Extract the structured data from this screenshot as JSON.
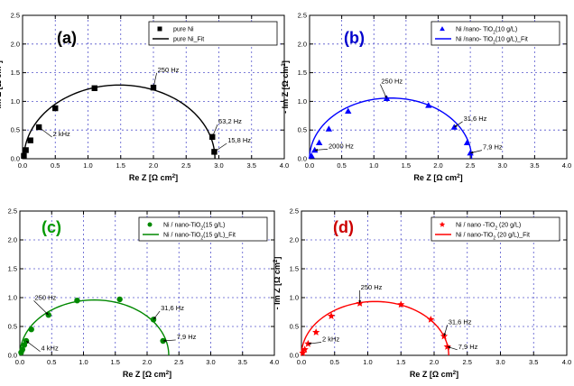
{
  "chart_data": [
    {
      "type": "scatter",
      "panel_label": "(a)",
      "panel_label_color": "#000000",
      "color": "#000000",
      "marker": "square",
      "xlabel": "Re Z [Ω cm²]",
      "ylabel": "- Im Z [Ω cm²]",
      "xlim": [
        0,
        4.0
      ],
      "ylim": [
        0,
        2.5
      ],
      "xticks": [
        "0.0",
        "0.5",
        "1.0",
        "1.5",
        "2.0",
        "2.5",
        "3.0",
        "3.5",
        "4.0"
      ],
      "yticks": [
        "0.0",
        "0.5",
        "1.0",
        "1.5",
        "2.0",
        "2.5"
      ],
      "grid": true,
      "legend": {
        "position": "top-right",
        "entries": [
          "pure Ni",
          "pure Ni_Fit"
        ]
      },
      "series": [
        {
          "name": "pure Ni",
          "kind": "points",
          "x": [
            0.02,
            0.05,
            0.12,
            0.25,
            0.5,
            1.1,
            2.0,
            2.9,
            2.93
          ],
          "y": [
            0.05,
            0.15,
            0.32,
            0.55,
            0.88,
            1.23,
            1.24,
            0.38,
            0.12
          ]
        },
        {
          "name": "pure Ni_Fit",
          "kind": "fit",
          "center": 1.48,
          "radius": 1.46,
          "depression": 0.88
        }
      ],
      "annotations": [
        {
          "text": "250 Hz",
          "x": 2.0,
          "y": 1.24,
          "tx": 2.05,
          "ty": 1.45
        },
        {
          "text": "63,2 Hz",
          "x": 2.9,
          "y": 0.38,
          "tx": 2.98,
          "ty": 0.55
        },
        {
          "text": "15,8 Hz",
          "x": 2.93,
          "y": 0.12,
          "tx": 3.12,
          "ty": 0.22
        },
        {
          "text": "2 kHz",
          "x": 0.25,
          "y": 0.55,
          "tx": 0.45,
          "ty": 0.33
        }
      ]
    },
    {
      "type": "scatter",
      "panel_label": "(b)",
      "panel_label_color": "#0000cc",
      "color": "#0000ff",
      "marker": "triangle",
      "xlabel": "Re Z [Ω cm²]",
      "ylabel": "- Im Z [Ω cm²]",
      "xlim": [
        0,
        4.0
      ],
      "ylim": [
        0,
        2.5
      ],
      "xticks": [
        "0.0",
        "0.5",
        "1.0",
        "1.5",
        "2.0",
        "2.5",
        "3.0",
        "3.5",
        "4.0"
      ],
      "yticks": [
        "0.0",
        "0.5",
        "1.0",
        "1.5",
        "2.0",
        "2.5"
      ],
      "grid": true,
      "legend": {
        "position": "top-right",
        "entries": [
          "Ni /nano- TiO₂(10 g/L)",
          "Ni /nano- TiO₂(10 g/L)_Fit"
        ]
      },
      "series": [
        {
          "name": "Ni /nano- TiO₂(10 g/L)",
          "kind": "points",
          "x": [
            0.03,
            0.08,
            0.15,
            0.3,
            0.6,
            1.2,
            1.85,
            2.25,
            2.45,
            2.5
          ],
          "y": [
            0.05,
            0.15,
            0.28,
            0.52,
            0.83,
            1.05,
            0.93,
            0.55,
            0.28,
            0.1
          ]
        },
        {
          "name": "Ni /nano- TiO₂(10 g/L)_Fit",
          "kind": "fit",
          "center": 1.26,
          "radius": 1.26,
          "depression": 0.84
        }
      ],
      "annotations": [
        {
          "text": "250 Hz",
          "x": 1.2,
          "y": 1.05,
          "tx": 1.1,
          "ty": 1.25
        },
        {
          "text": "31,6 Hz",
          "x": 2.25,
          "y": 0.55,
          "tx": 2.38,
          "ty": 0.6
        },
        {
          "text": "7,9 Hz",
          "x": 2.5,
          "y": 0.1,
          "tx": 2.68,
          "ty": 0.1
        },
        {
          "text": "2000 Hz",
          "x": 0.08,
          "y": 0.15,
          "tx": 0.28,
          "ty": 0.12
        }
      ]
    },
    {
      "type": "scatter",
      "panel_label": "(c)",
      "panel_label_color": "#009900",
      "color": "#008800",
      "marker": "circle",
      "xlabel": "Re Z [Ω cm²]",
      "ylabel": "- Im Z [Ω cm²]",
      "xlim": [
        0,
        4.0
      ],
      "ylim": [
        0,
        2.5
      ],
      "xticks": [
        "0.0",
        "0.5",
        "1.0",
        "1.5",
        "2.0",
        "2.5",
        "3.0",
        "3.5",
        "4.0"
      ],
      "yticks": [
        "0.0",
        "0.5",
        "1.0",
        "1.5",
        "2.0",
        "2.5"
      ],
      "grid": true,
      "legend": {
        "position": "top-right",
        "entries": [
          "Ni / nano-TiO₂(15 g/L)",
          "Ni / nano-TiO₂(15 g/L)_Fit"
        ]
      },
      "series": [
        {
          "name": "Ni / nano-TiO₂(15 g/L)",
          "kind": "points",
          "x": [
            0.02,
            0.04,
            0.07,
            0.1,
            0.18,
            0.45,
            0.9,
            1.57,
            2.1,
            2.25
          ],
          "y": [
            0.05,
            0.1,
            0.18,
            0.25,
            0.45,
            0.7,
            0.95,
            0.97,
            0.62,
            0.25
          ]
        },
        {
          "name": "Ni / nano-TiO₂(15 g/L)_Fit",
          "kind": "fit",
          "center": 1.17,
          "radius": 1.17,
          "depression": 0.82
        }
      ],
      "annotations": [
        {
          "text": "250 Hz",
          "x": 0.45,
          "y": 0.7,
          "tx": 0.22,
          "ty": 0.9
        },
        {
          "text": "31,6 Hz",
          "x": 2.1,
          "y": 0.62,
          "tx": 2.2,
          "ty": 0.72
        },
        {
          "text": "7,9 Hz",
          "x": 2.25,
          "y": 0.25,
          "tx": 2.45,
          "ty": 0.22
        },
        {
          "text": "4 kHz",
          "x": 0.1,
          "y": 0.25,
          "tx": 0.32,
          "ty": 0.02
        }
      ]
    },
    {
      "type": "scatter",
      "panel_label": "(d)",
      "panel_label_color": "#cc0000",
      "color": "#ff0000",
      "marker": "star",
      "xlabel": "Re Z [Ω cm²]",
      "ylabel": "- Im Z [Ω cm²]",
      "xlim": [
        0,
        4.0
      ],
      "ylim": [
        0,
        2.5
      ],
      "xticks": [
        "0.0",
        "0.5",
        "1.0",
        "1.5",
        "2.0",
        "2.5",
        "3.0",
        "3.5",
        "4.0"
      ],
      "yticks": [
        "0.0",
        "0.5",
        "1.0",
        "1.5",
        "2.0",
        "2.5"
      ],
      "grid": true,
      "legend": {
        "position": "top-right",
        "entries": [
          "Ni / nano -TiO₂ (20 g/L)",
          "Ni / nano-TiO₂ (20 g/L)_Fit"
        ]
      },
      "series": [
        {
          "name": "Ni / nano -TiO₂ (20 g/L)",
          "kind": "points",
          "x": [
            0.02,
            0.05,
            0.1,
            0.22,
            0.45,
            0.88,
            1.5,
            1.95,
            2.15,
            2.2
          ],
          "y": [
            0.04,
            0.1,
            0.2,
            0.4,
            0.68,
            0.9,
            0.88,
            0.62,
            0.33,
            0.15
          ]
        },
        {
          "name": "Ni / nano-TiO₂ (20 g/L)_Fit",
          "kind": "fit",
          "center": 1.11,
          "radius": 1.11,
          "depression": 0.84
        }
      ],
      "annotations": [
        {
          "text": "250 Hz",
          "x": 0.88,
          "y": 0.9,
          "tx": 0.88,
          "ty": 1.08
        },
        {
          "text": "31,6 Hz",
          "x": 2.15,
          "y": 0.33,
          "tx": 2.2,
          "ty": 0.48
        },
        {
          "text": "7,9 Hz",
          "x": 2.2,
          "y": 0.15,
          "tx": 2.35,
          "ty": 0.05
        },
        {
          "text": "2 kHz",
          "x": 0.1,
          "y": 0.2,
          "tx": 0.3,
          "ty": 0.18
        }
      ]
    }
  ]
}
